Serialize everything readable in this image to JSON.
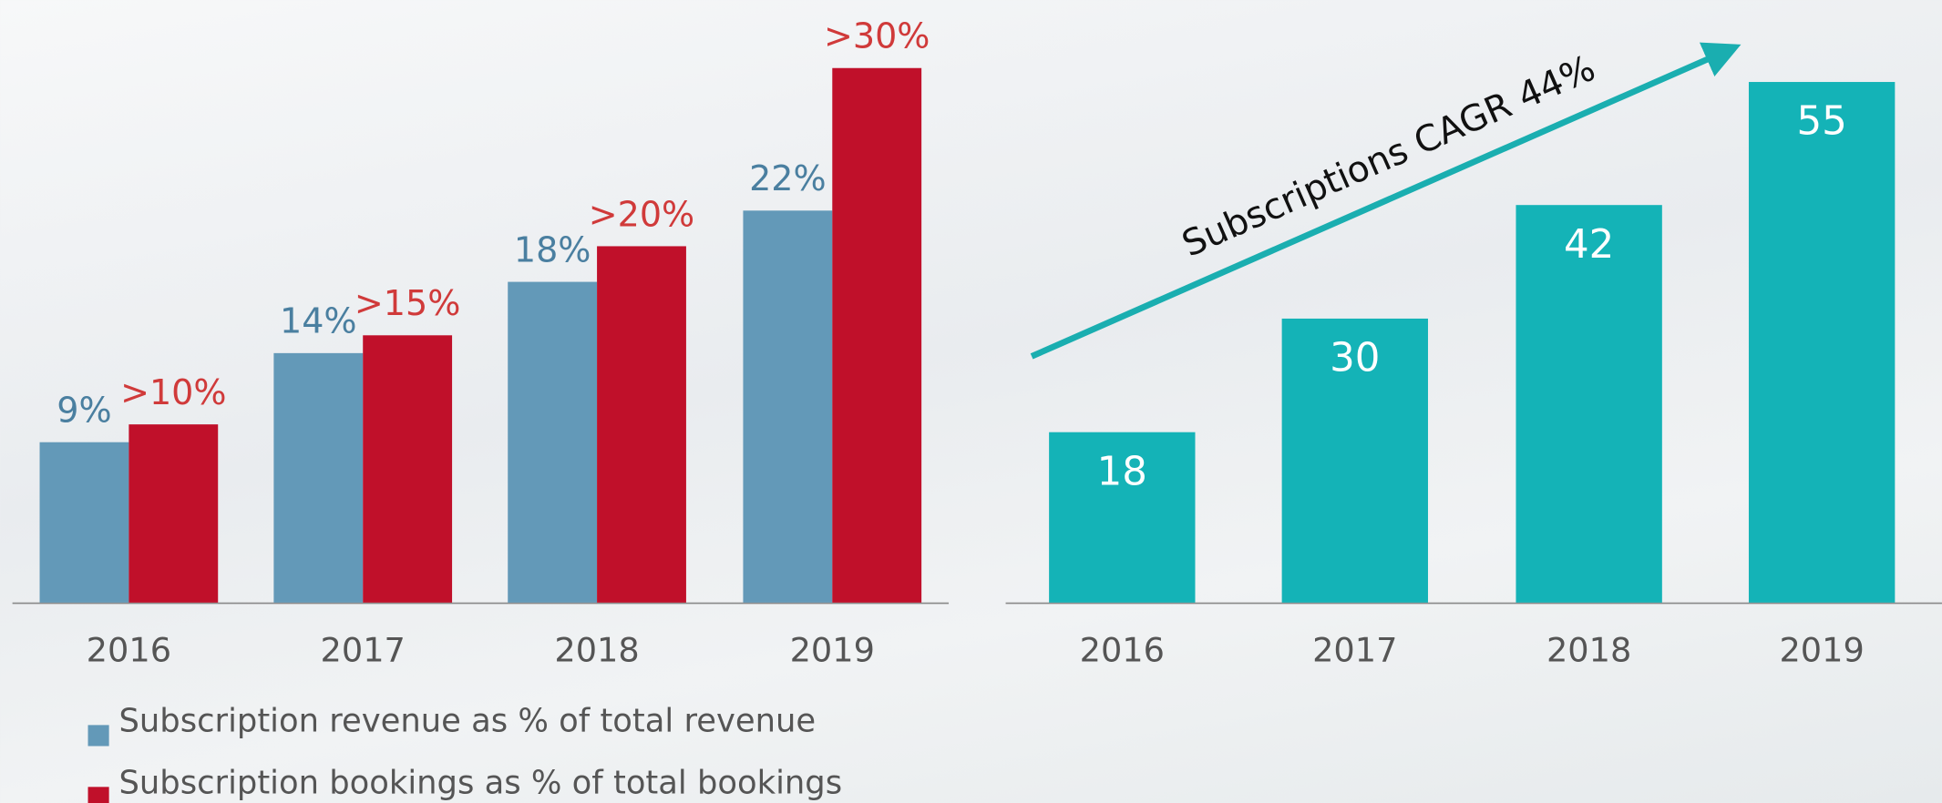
{
  "chart_data": [
    {
      "type": "bar",
      "categories": [
        "2016",
        "2017",
        "2018",
        "2019"
      ],
      "series": [
        {
          "name": "Subscription revenue as % of total revenue",
          "color": "#6399b8",
          "values": [
            9,
            14,
            18,
            22
          ],
          "value_labels": [
            "9%",
            "14%",
            "18%",
            "22%"
          ]
        },
        {
          "name": "Subscription bookings as % of total bookings",
          "color": "#c0102a",
          "values": [
            10,
            15,
            20,
            30
          ],
          "value_labels": [
            ">10%",
            ">15%",
            ">20%",
            ">30%"
          ]
        }
      ]
    },
    {
      "type": "bar",
      "categories": [
        "2016",
        "2017",
        "2018",
        "2019"
      ],
      "values": [
        18,
        30,
        42,
        55
      ],
      "color": "#14b3b7",
      "annotation": "Subscriptions CAGR 44%"
    }
  ]
}
